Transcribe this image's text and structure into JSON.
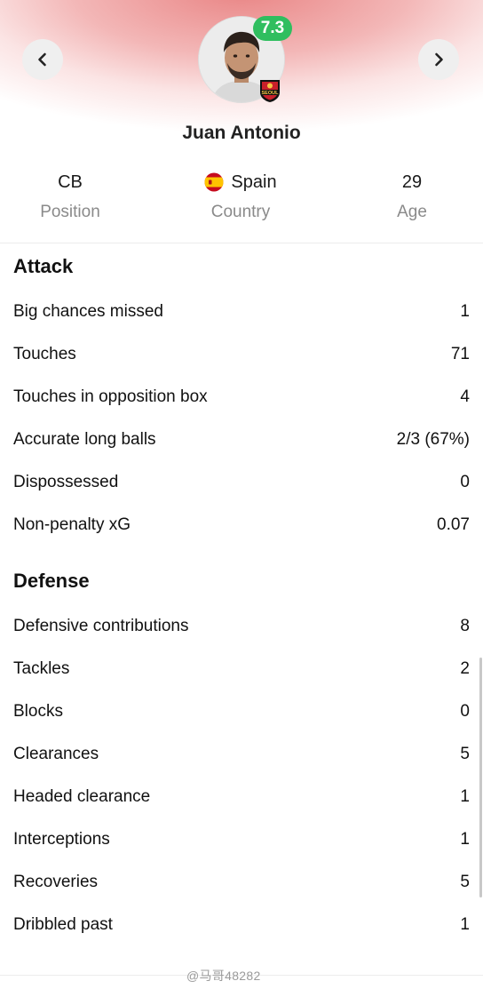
{
  "player": {
    "name": "Juan Antonio",
    "rating": "7.3",
    "club_badge_text": "SEOUL",
    "position_value": "CB",
    "position_label": "Position",
    "country_value": "Spain",
    "country_label": "Country",
    "age_value": "29",
    "age_label": "Age"
  },
  "attack": {
    "title": "Attack",
    "rows": [
      {
        "label": "Big chances missed",
        "value": "1"
      },
      {
        "label": "Touches",
        "value": "71"
      },
      {
        "label": "Touches in opposition box",
        "value": "4"
      },
      {
        "label": "Accurate long balls",
        "value": "2/3 (67%)"
      },
      {
        "label": "Dispossessed",
        "value": "0"
      },
      {
        "label": "Non-penalty xG",
        "value": "0.07"
      }
    ]
  },
  "defense": {
    "title": "Defense",
    "rows": [
      {
        "label": "Defensive contributions",
        "value": "8"
      },
      {
        "label": "Tackles",
        "value": "2"
      },
      {
        "label": "Blocks",
        "value": "0"
      },
      {
        "label": "Clearances",
        "value": "5"
      },
      {
        "label": "Headed clearance",
        "value": "1"
      },
      {
        "label": "Interceptions",
        "value": "1"
      },
      {
        "label": "Recoveries",
        "value": "5"
      },
      {
        "label": "Dribbled past",
        "value": "1"
      }
    ]
  },
  "watermark": "@马哥48282",
  "colors": {
    "rating_badge": "#2fbe5f",
    "header_gradient": "#e98585",
    "label_gray": "#8a8a8a"
  },
  "icons": {
    "prev": "chevron-left-icon",
    "next": "chevron-right-icon",
    "flag": "spain-flag-icon",
    "badge": "club-badge-icon"
  }
}
